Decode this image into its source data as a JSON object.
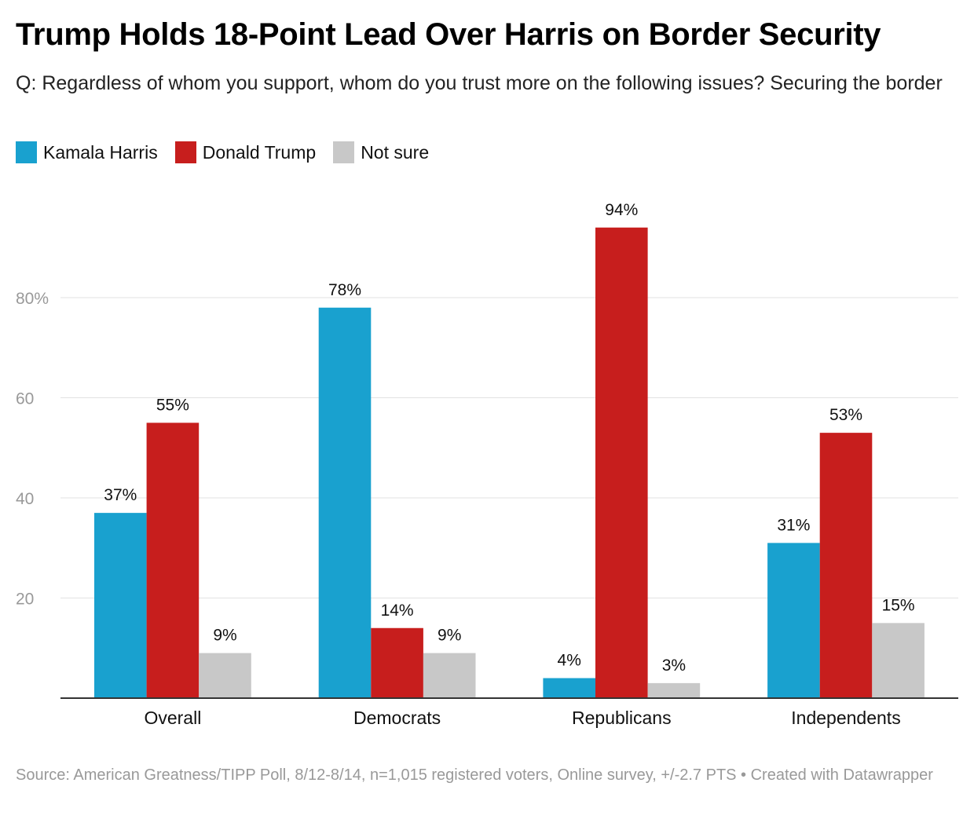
{
  "chart_data": {
    "type": "bar",
    "title": "Trump Holds 18-Point Lead Over Harris on Border Security",
    "subtitle": "Q: Regardless of whom you support, whom do you trust more on the following issues? Securing the border",
    "categories": [
      "Overall",
      "Democrats",
      "Republicans",
      "Independents"
    ],
    "series": [
      {
        "name": "Kamala Harris",
        "color": "#19a1cf",
        "values": [
          37,
          78,
          4,
          31
        ]
      },
      {
        "name": "Donald Trump",
        "color": "#c71e1d",
        "values": [
          55,
          14,
          94,
          53
        ]
      },
      {
        "name": "Not sure",
        "color": "#c8c8c8",
        "values": [
          9,
          9,
          3,
          15
        ]
      }
    ],
    "value_suffix": "%",
    "yticks": [
      20,
      40,
      60,
      80
    ],
    "ytick_labels": [
      "20",
      "40",
      "60",
      "80%"
    ],
    "ylim": [
      0,
      100
    ],
    "grid": true,
    "legend_position": "top-left",
    "xlabel": "",
    "ylabel": "",
    "source": "Source: American Greatness/TIPP Poll, 8/12-8/14, n=1,015 registered voters, Online survey, +/-2.7 PTS • Created with Datawrapper"
  }
}
